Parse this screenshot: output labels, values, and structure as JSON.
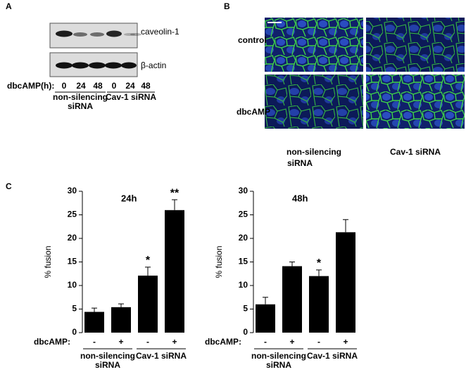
{
  "panels": [
    "A",
    "B",
    "C"
  ],
  "blot": {
    "proteins": [
      "caveolin-1",
      "β-actin"
    ],
    "row_label": "dbcAMP(h):",
    "lanes": [
      "0",
      "24",
      "48",
      "0",
      "24",
      "48"
    ],
    "groups": [
      [
        "non-silencing",
        "siRNA"
      ],
      [
        "Cav-1 siRNA"
      ]
    ]
  },
  "microscopy": {
    "rows": [
      "control",
      "dbcAMP"
    ],
    "columns": [
      [
        "non-silencing",
        "siRNA"
      ],
      [
        "Cav-1 siRNA"
      ]
    ]
  },
  "chart_data": [
    {
      "type": "bar",
      "title": "24h",
      "y_label": "% fusion",
      "x_row_label": "dbcAMP:",
      "categories": [
        "-",
        "+",
        "-",
        "+"
      ],
      "values": [
        4.4,
        5.4,
        12.1,
        26.0
      ],
      "errors": [
        0.8,
        0.7,
        1.8,
        2.2
      ],
      "value_annotations": [
        null,
        null,
        "*",
        "**"
      ],
      "color": "#000000",
      "groups": [
        [
          "non-silencing",
          "siRNA"
        ],
        [
          "Cav-1 siRNA"
        ]
      ],
      "ylim": [
        0,
        30
      ],
      "yticks": [
        0,
        5,
        10,
        15,
        20,
        25,
        30
      ]
    },
    {
      "type": "bar",
      "title": "48h",
      "y_label": "% fusion",
      "x_row_label": "dbcAMP:",
      "categories": [
        "-",
        "+",
        "-",
        "+"
      ],
      "values": [
        6.0,
        14.1,
        12.0,
        21.3
      ],
      "errors": [
        1.5,
        0.9,
        1.3,
        2.7
      ],
      "value_annotations": [
        null,
        null,
        "*",
        null
      ],
      "color": "#000000",
      "groups": [
        [
          "non-silencing",
          "siRNA"
        ],
        [
          "Cav-1 siRNA"
        ]
      ],
      "ylim": [
        0,
        30
      ],
      "yticks": [
        0,
        5,
        10,
        15,
        20,
        25,
        30
      ]
    }
  ]
}
